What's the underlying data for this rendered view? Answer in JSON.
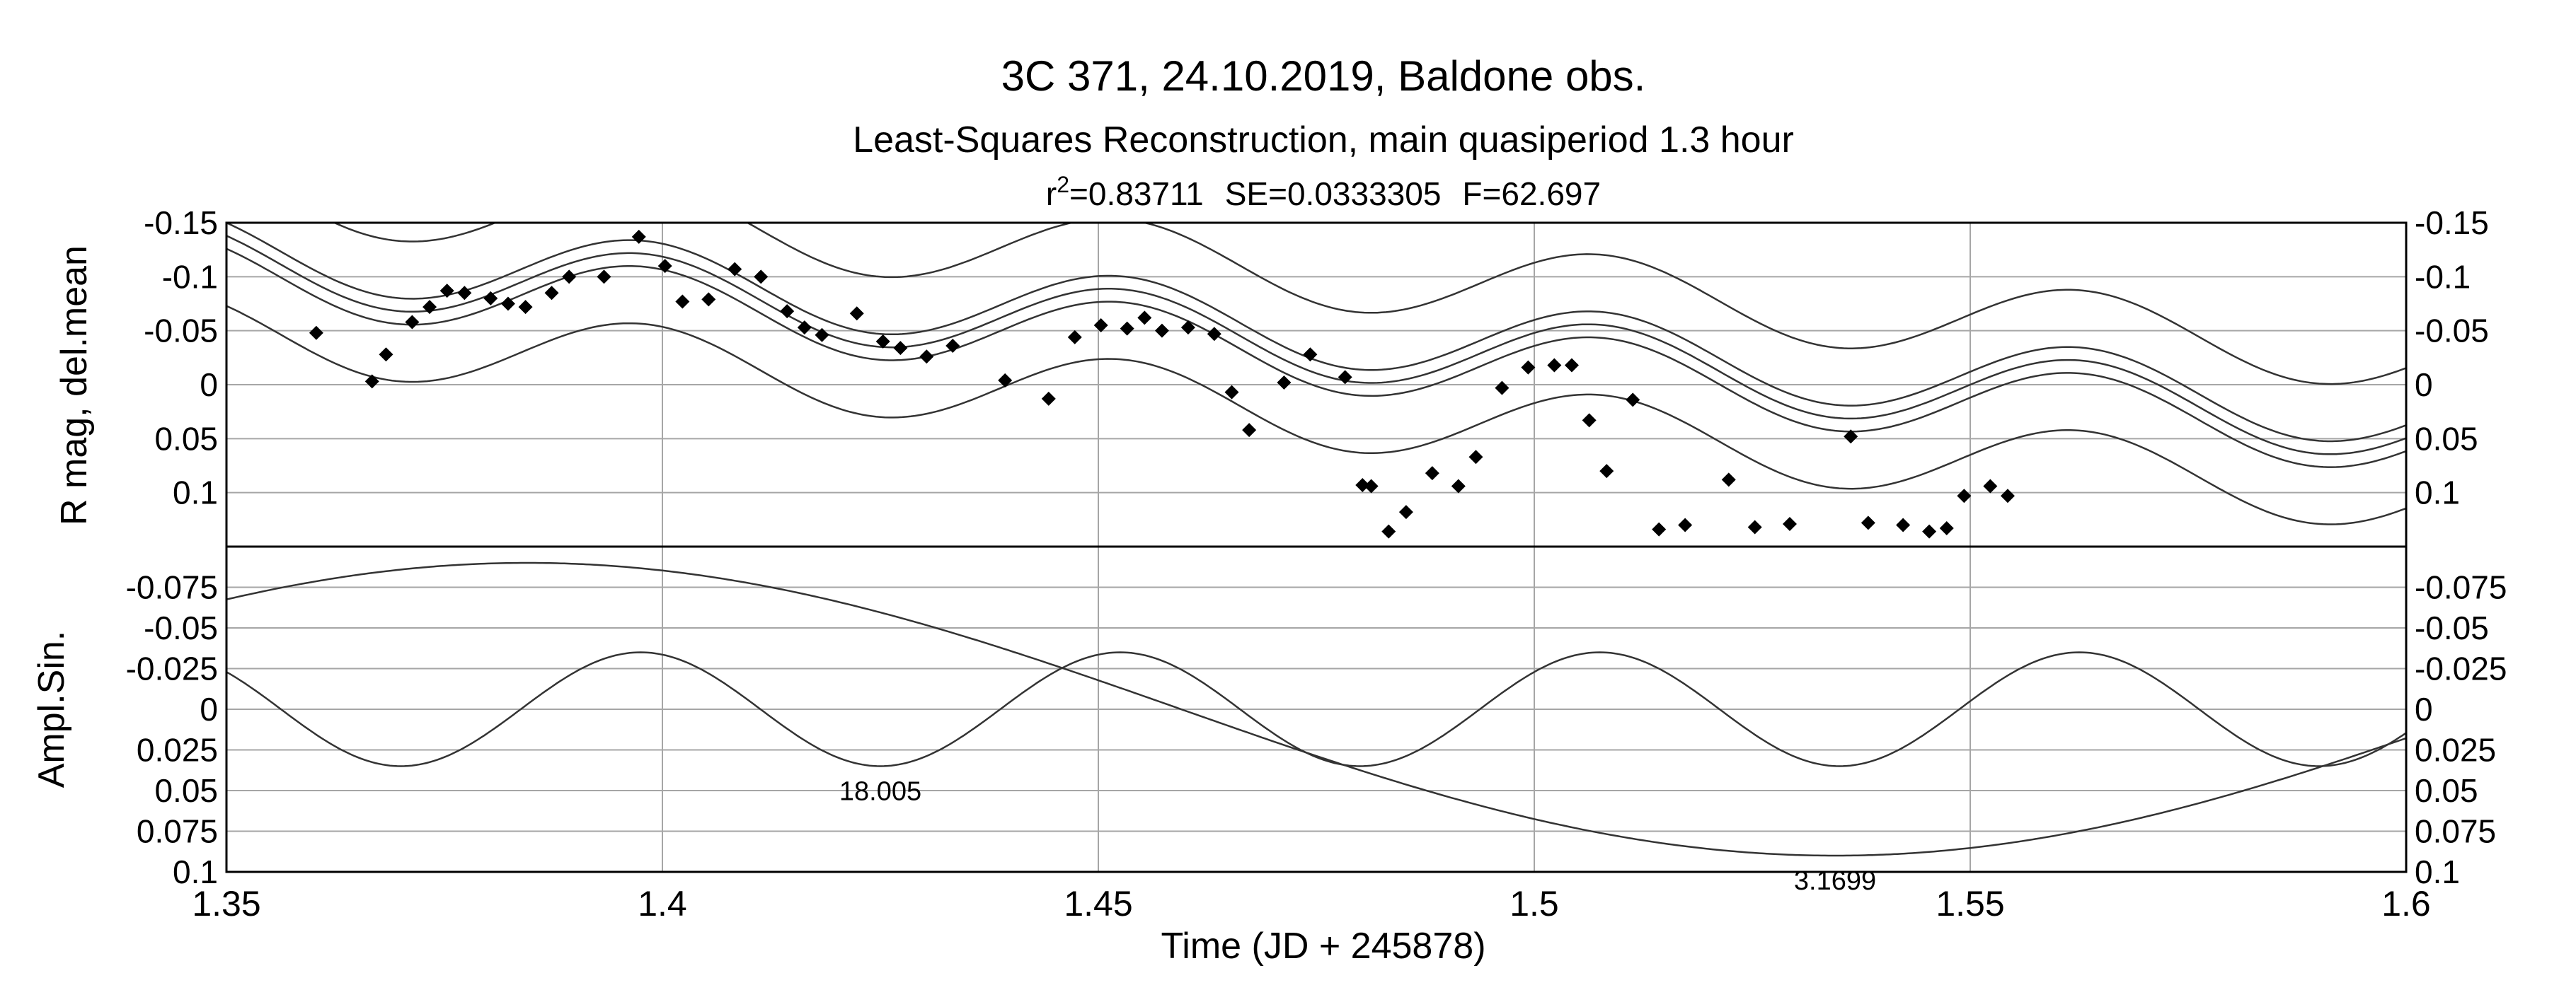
{
  "chart_data": {
    "type": "scatter",
    "title": "3C 371, 24.10.2019, Baldone obs.",
    "subtitle": "Least-Squares Reconstruction, main quasiperiod 1.3 hour",
    "stats": {
      "r2_prefix": "r",
      "r2_sup": "2",
      "r2_value": "=0.83711",
      "se": "SE=0.0333305",
      "f": "F=62.697"
    },
    "xlabel": "Time (JD + 245878)",
    "xlim": [
      1.35,
      1.6
    ],
    "xticks": [
      "1.35",
      "1.4",
      "1.45",
      "1.5",
      "1.55",
      "1.6"
    ],
    "top_panel": {
      "ylabel": "R mag, del.mean",
      "ylim": [
        -0.15,
        0.15
      ],
      "yticks": [
        -0.15,
        -0.1,
        -0.05,
        0,
        0.05,
        0.1
      ],
      "ytick_labels": [
        "-0.15",
        "-0.1",
        "-0.05",
        "0",
        "0.05",
        "0.1"
      ],
      "observations": {
        "x": [
          1.3603,
          1.3667,
          1.3683,
          1.3713,
          1.3733,
          1.3753,
          1.3773,
          1.3803,
          1.3823,
          1.3843,
          1.3873,
          1.3893,
          1.3933,
          1.3973,
          1.4003,
          1.4023,
          1.4053,
          1.4083,
          1.4113,
          1.4143,
          1.4163,
          1.4183,
          1.4223,
          1.4253,
          1.4273,
          1.4303,
          1.4333,
          1.4393,
          1.4443,
          1.4473,
          1.4503,
          1.4533,
          1.4553,
          1.4573,
          1.4603,
          1.4633,
          1.4653,
          1.4673,
          1.4713,
          1.4743,
          1.4783,
          1.4803,
          1.4813,
          1.4833,
          1.4853,
          1.4883,
          1.4913,
          1.4933,
          1.4963,
          1.4993,
          1.5023,
          1.5043,
          1.5063,
          1.5083,
          1.5113,
          1.5143,
          1.5173,
          1.5223,
          1.5253,
          1.5293,
          1.5363,
          1.5383,
          1.5423,
          1.5453,
          1.5473,
          1.5493,
          1.5523,
          1.5543
        ],
        "y": [
          -0.048,
          -0.003,
          -0.028,
          -0.058,
          -0.072,
          -0.087,
          -0.085,
          -0.08,
          -0.075,
          -0.072,
          -0.085,
          -0.1,
          -0.1,
          -0.137,
          -0.11,
          -0.077,
          -0.079,
          -0.107,
          -0.1,
          -0.068,
          -0.053,
          -0.046,
          -0.066,
          -0.04,
          -0.034,
          -0.026,
          -0.036,
          -0.004,
          0.013,
          -0.044,
          -0.055,
          -0.052,
          -0.062,
          -0.05,
          -0.053,
          -0.047,
          0.007,
          0.042,
          -0.002,
          -0.028,
          -0.007,
          0.093,
          0.094,
          0.136,
          0.118,
          0.082,
          0.094,
          0.067,
          0.003,
          -0.016,
          -0.018,
          -0.018,
          0.033,
          0.08,
          0.014,
          0.134,
          0.13,
          0.088,
          0.132,
          0.129,
          0.048,
          0.128,
          0.13,
          0.136,
          0.133,
          0.103,
          0.094,
          0.103
        ],
        "marker": "diamond"
      },
      "model_curves": [
        "fit",
        "conf_upper",
        "conf_lower",
        "pred_upper",
        "pred_lower"
      ]
    },
    "bottom_panel": {
      "ylabel": "Ampl.Sin.",
      "ylim": [
        -0.1,
        0.1
      ],
      "yticks": [
        -0.075,
        -0.05,
        -0.025,
        0,
        0.025,
        0.05,
        0.075,
        0.1
      ],
      "ytick_labels": [
        "-0.075",
        "-0.05",
        "-0.025",
        "0",
        "0.025",
        "0.05",
        "0.075",
        "0.1"
      ],
      "series": [
        {
          "name": "18.005",
          "amplitude": 0.035,
          "period": 0.055,
          "peak_at": 1.3975
        },
        {
          "name": "3.1699",
          "amplitude": 0.09,
          "period": 0.3,
          "peak_at": 1.3845
        }
      ]
    },
    "grid": true
  }
}
